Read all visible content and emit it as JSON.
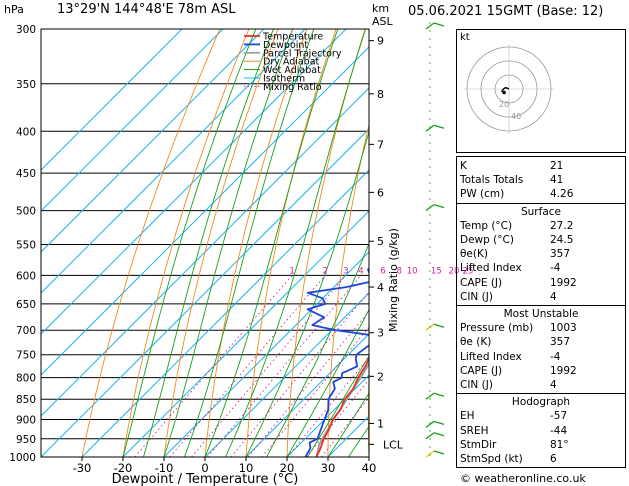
{
  "header": {
    "hpa": "hPa",
    "location": "13°29'N 144°48'E 78m ASL",
    "km": "km",
    "asl": "ASL",
    "datetime": "05.06.2021 15GMT (Base: 12)"
  },
  "colors": {
    "temperature": "#e8302a",
    "dewpoint": "#1e46dc",
    "parcel": "#a0a0a0",
    "dry_adiabat": "#f08c1e",
    "wet_adiabat": "#19a019",
    "isotherm": "#19b4f0",
    "mixing_ratio": "#d21e96"
  },
  "chart_data": {
    "type": "line",
    "xlabel": "Dewpoint / Temperature (°C)",
    "ylabel_right": "Mixing Ratio (g/kg)",
    "xlim": [
      -40,
      40
    ],
    "ylim": [
      1000,
      300
    ],
    "x_ticks": [
      "-30",
      "-20",
      "-10",
      "0",
      "10",
      "20",
      "30",
      "40"
    ],
    "pressure_ticks": [
      "300",
      "350",
      "400",
      "450",
      "500",
      "550",
      "600",
      "650",
      "700",
      "750",
      "800",
      "850",
      "900",
      "950",
      "1000"
    ],
    "km_ticks": [
      {
        "km": "1",
        "p": 910
      },
      {
        "km": "2",
        "p": 797
      },
      {
        "km": "3",
        "p": 705
      },
      {
        "km": "4",
        "p": 620
      },
      {
        "km": "5",
        "p": 545
      },
      {
        "km": "6",
        "p": 475
      },
      {
        "km": "7",
        "p": 415
      },
      {
        "km": "8",
        "p": 360
      },
      {
        "km": "9",
        "p": 310
      }
    ],
    "lcl_label": "LCL",
    "lcl_p": 965,
    "mixing_ratio_labels": [
      "1",
      "2",
      "3",
      "4",
      "6",
      "8",
      "10",
      "15",
      "20",
      "25"
    ],
    "legend": [
      "Temperature",
      "Dewpoint",
      "Parcel Trajectory",
      "Dry Adiabat",
      "Wet Adiabat",
      "Isotherm",
      "Mixing Ratio"
    ],
    "series": [
      {
        "name": "Temperature",
        "points": [
          [
            1000,
            27.2
          ],
          [
            975,
            26
          ],
          [
            950,
            24.5
          ],
          [
            925,
            23.5
          ],
          [
            900,
            22
          ],
          [
            875,
            21.5
          ],
          [
            850,
            20
          ],
          [
            825,
            19.5
          ],
          [
            800,
            18
          ],
          [
            775,
            17
          ],
          [
            750,
            15.5
          ],
          [
            725,
            14
          ],
          [
            700,
            12.5
          ],
          [
            675,
            11
          ],
          [
            650,
            9
          ],
          [
            625,
            8
          ],
          [
            600,
            6
          ],
          [
            575,
            4
          ],
          [
            550,
            2
          ],
          [
            525,
            0
          ],
          [
            500,
            -3
          ],
          [
            475,
            -5.5
          ],
          [
            450,
            -8.5
          ],
          [
            425,
            -11.5
          ],
          [
            400,
            -15
          ],
          [
            375,
            -18.5
          ],
          [
            350,
            -22.5
          ],
          [
            325,
            -27
          ],
          [
            300,
            -31
          ]
        ]
      },
      {
        "name": "Dewpoint",
        "points": [
          [
            1000,
            24.5
          ],
          [
            975,
            23.5
          ],
          [
            960,
            22
          ],
          [
            950,
            23
          ],
          [
            925,
            21.5
          ],
          [
            900,
            20
          ],
          [
            875,
            18.5
          ],
          [
            850,
            16
          ],
          [
            825,
            15
          ],
          [
            810,
            13
          ],
          [
            800,
            14
          ],
          [
            790,
            13
          ],
          [
            775,
            15
          ],
          [
            760,
            13
          ],
          [
            750,
            12
          ],
          [
            725,
            13
          ],
          [
            710,
            11
          ],
          [
            700,
            1
          ],
          [
            690,
            -6
          ],
          [
            675,
            -5
          ],
          [
            660,
            -11
          ],
          [
            650,
            -8
          ],
          [
            640,
            -10
          ],
          [
            630,
            -15
          ],
          [
            620,
            -7
          ],
          [
            610,
            -2
          ],
          [
            600,
            -4
          ],
          [
            590,
            -6
          ],
          [
            575,
            -1
          ],
          [
            560,
            5
          ],
          [
            550,
            6
          ],
          [
            540,
            0
          ],
          [
            530,
            -5
          ],
          [
            520,
            -3
          ],
          [
            510,
            -8
          ],
          [
            500,
            -13
          ],
          [
            490,
            -7
          ],
          [
            480,
            -9
          ],
          [
            470,
            -2
          ],
          [
            460,
            -4
          ],
          [
            450,
            -5
          ],
          [
            440,
            -12
          ],
          [
            430,
            -20
          ],
          [
            420,
            -16
          ],
          [
            410,
            -18
          ],
          [
            400,
            -22
          ],
          [
            390,
            -24
          ],
          [
            380,
            -23
          ],
          [
            370,
            -26
          ],
          [
            360,
            -37
          ],
          [
            350,
            -44
          ],
          [
            340,
            -47
          ],
          [
            330,
            -45
          ],
          [
            320,
            -40
          ],
          [
            310,
            -42
          ],
          [
            300,
            -41
          ]
        ]
      },
      {
        "name": "Parcel Trajectory",
        "points": [
          [
            1000,
            27.2
          ],
          [
            965,
            24.8
          ],
          [
            900,
            22.2
          ],
          [
            850,
            20.5
          ],
          [
            800,
            18.6
          ],
          [
            750,
            16.4
          ],
          [
            700,
            14
          ],
          [
            650,
            11.3
          ],
          [
            600,
            8.4
          ],
          [
            550,
            5
          ],
          [
            500,
            1
          ],
          [
            450,
            -3.8
          ],
          [
            400,
            -9.6
          ],
          [
            350,
            -17
          ],
          [
            300,
            -26
          ]
        ]
      }
    ],
    "hodograph": {
      "label": "kt",
      "ring_labels": [
        "20",
        "40"
      ],
      "points": [
        [
          0,
          0
        ],
        [
          -2,
          1
        ],
        [
          -5,
          2
        ],
        [
          -8,
          0
        ],
        [
          -10,
          -3
        ],
        [
          -7,
          -5
        ]
      ]
    }
  },
  "indices": {
    "general": [
      {
        "label": "K",
        "value": "21"
      },
      {
        "label": "Totals Totals",
        "value": "41"
      },
      {
        "label": "PW (cm)",
        "value": "4.26"
      }
    ],
    "surface": {
      "title": "Surface",
      "rows": [
        {
          "label": "Temp (°C)",
          "value": "27.2"
        },
        {
          "label": "Dewp (°C)",
          "value": "24.5"
        },
        {
          "label": "θe(K)",
          "value": "357"
        },
        {
          "label": "Lifted Index",
          "value": "-4"
        },
        {
          "label": "CAPE (J)",
          "value": "1992"
        },
        {
          "label": "CIN (J)",
          "value": "4"
        }
      ]
    },
    "most_unstable": {
      "title": "Most Unstable",
      "rows": [
        {
          "label": "Pressure (mb)",
          "value": "1003"
        },
        {
          "label": "θe (K)",
          "value": "357"
        },
        {
          "label": "Lifted Index",
          "value": "-4"
        },
        {
          "label": "CAPE (J)",
          "value": "1992"
        },
        {
          "label": "CIN (J)",
          "value": "4"
        }
      ]
    },
    "hodograph": {
      "title": "Hodograph",
      "rows": [
        {
          "label": "EH",
          "value": "-57"
        },
        {
          "label": "SREH",
          "value": "-44"
        },
        {
          "label": "StmDir",
          "value": "81°"
        },
        {
          "label": "StmSpd (kt)",
          "value": "6"
        }
      ]
    }
  },
  "copyright": "© weatheronline.co.uk"
}
